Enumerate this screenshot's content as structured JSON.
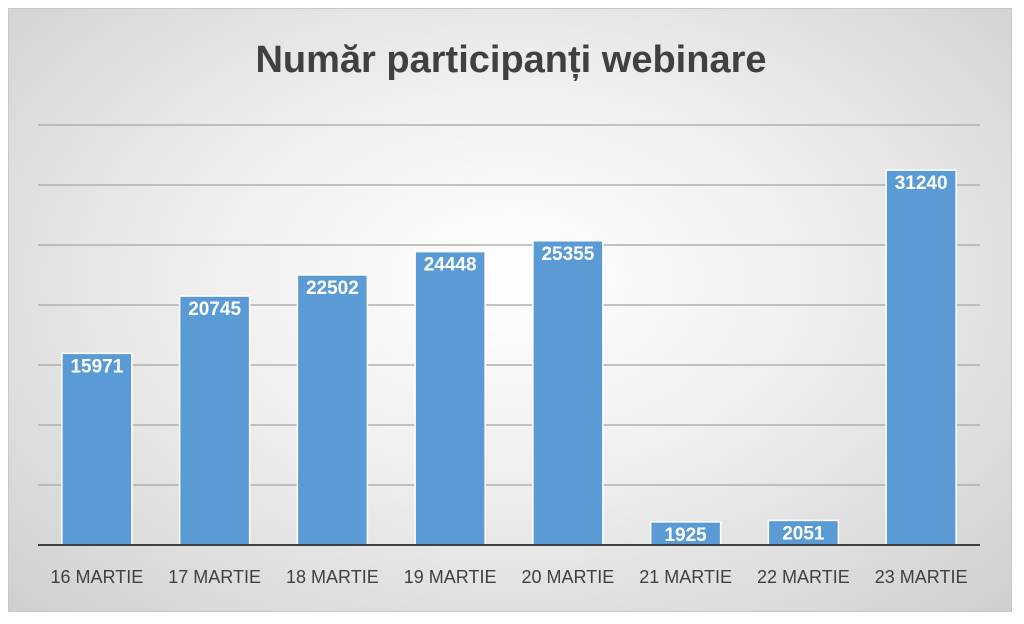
{
  "chart_data": {
    "type": "bar",
    "title": "Număr participanți webinare",
    "categories": [
      "16 MARTIE",
      "17 MARTIE",
      "18 MARTIE",
      "19 MARTIE",
      "20 MARTIE",
      "21 MARTIE",
      "22 MARTIE",
      "23 MARTIE"
    ],
    "values": [
      15971,
      20745,
      22502,
      24448,
      25355,
      1925,
      2051,
      31240
    ],
    "color": "#5b9bd5",
    "ylim": [
      0,
      35000
    ],
    "yticks": [
      0,
      5000,
      10000,
      15000,
      20000,
      25000,
      30000,
      35000
    ],
    "grid": true
  }
}
